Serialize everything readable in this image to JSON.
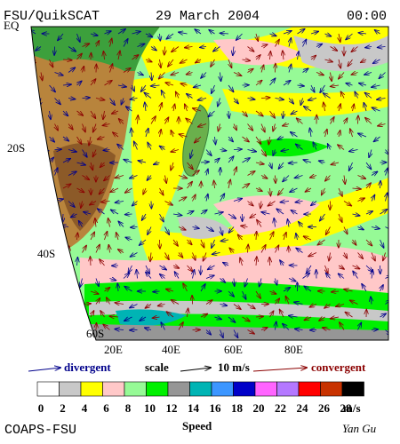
{
  "header": {
    "source": "FSU/QuikSCAT",
    "date": "29 March 2004",
    "time": "00:00"
  },
  "map": {
    "lat_labels": [
      "EQ",
      "20S",
      "40S",
      "60S"
    ],
    "lon_labels": [
      "20E",
      "40E",
      "60E",
      "80E"
    ]
  },
  "legend": {
    "divergent": "divergent",
    "scale": "scale",
    "scale_value": "10 m/s",
    "convergent": "convergent"
  },
  "colorbar": {
    "ticks": [
      0,
      2,
      4,
      6,
      8,
      10,
      12,
      14,
      16,
      18,
      20,
      22,
      24,
      26,
      28
    ],
    "unit": "m/s",
    "title": "Speed",
    "colors": [
      "#ffffff",
      "#c8c8c8",
      "#ffff00",
      "#ffc8c8",
      "#96fa96",
      "#00f000",
      "#969696",
      "#00b4b4",
      "#3c96ff",
      "#0000c8",
      "#ff64ff",
      "#b478ff",
      "#ff0000",
      "#c83200",
      "#000000"
    ]
  },
  "footer": {
    "credit": "COAPS-FSU",
    "author": "Yan Gu"
  }
}
